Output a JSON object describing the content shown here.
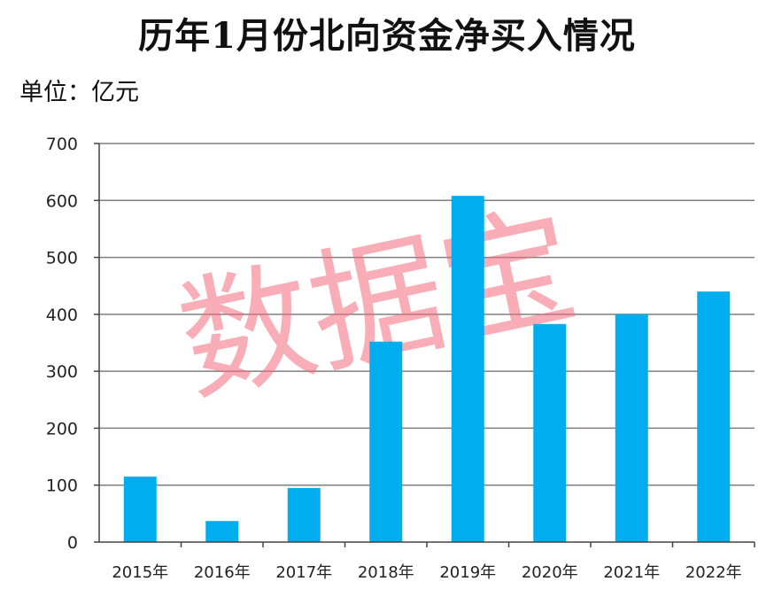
{
  "title": "历年1月份北向资金净买入情况",
  "unit_label": "单位：亿元",
  "watermark": "数据宝",
  "colors": {
    "bar": "#00aeef",
    "grid": "#7f7f7f",
    "axis": "#444444",
    "watermark": "#f26a7b"
  },
  "chart_data": {
    "type": "bar",
    "title": "历年1月份北向资金净买入情况",
    "xlabel": "",
    "ylabel": "单位：亿元",
    "categories": [
      "2015年",
      "2016年",
      "2017年",
      "2018年",
      "2019年",
      "2020年",
      "2021年",
      "2022年"
    ],
    "values": [
      115,
      37,
      95,
      352,
      608,
      383,
      400,
      440
    ],
    "ylim": [
      0,
      700
    ],
    "yticks": [
      0,
      100,
      200,
      300,
      400,
      500,
      600,
      700
    ],
    "grid": true,
    "legend": "none"
  }
}
